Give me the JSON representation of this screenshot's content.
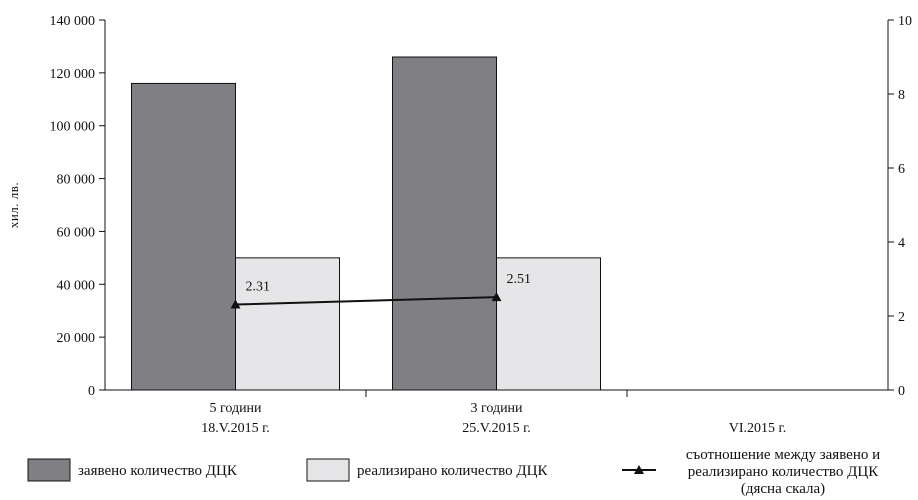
{
  "chart_data": {
    "type": "bar",
    "ylabel": "хил. лв.",
    "categories": [
      {
        "line1": "5 години",
        "line2": "18.V.2015 г."
      },
      {
        "line1": "3 години",
        "line2": "25.V.2015 г."
      },
      {
        "line1": "",
        "line2": "VI.2015 г."
      }
    ],
    "ylim": [
      0,
      140000
    ],
    "y_ticks": [
      "0",
      "20 000",
      "40 000",
      "60 000",
      "80 000",
      "100 000",
      "120 000",
      "140 000"
    ],
    "y2lim": [
      0,
      10
    ],
    "y2_ticks": [
      "0",
      "2",
      "4",
      "6",
      "8",
      "10"
    ],
    "series": [
      {
        "name": "заявено количество ДЦК",
        "kind": "bar",
        "color": "#808084",
        "values": [
          116000,
          126000,
          null
        ]
      },
      {
        "name": "реализирано количество ДЦК",
        "kind": "bar",
        "color": "#e6e6e8",
        "values": [
          50000,
          50000,
          null
        ]
      },
      {
        "name": "съотношение между заявено и реализирано количество ДЦК (дясна скала)",
        "legend_lines": [
          "съотношение между заявено и",
          "реализирано количество ДЦК",
          "(дясна скала)"
        ],
        "kind": "line",
        "axis": "right",
        "color": "#111111",
        "marker": "triangle",
        "values": [
          2.31,
          2.51,
          null
        ],
        "labels": [
          "2.31",
          "2.51",
          ""
        ]
      }
    ],
    "legend_position": "bottom",
    "grid": false
  }
}
